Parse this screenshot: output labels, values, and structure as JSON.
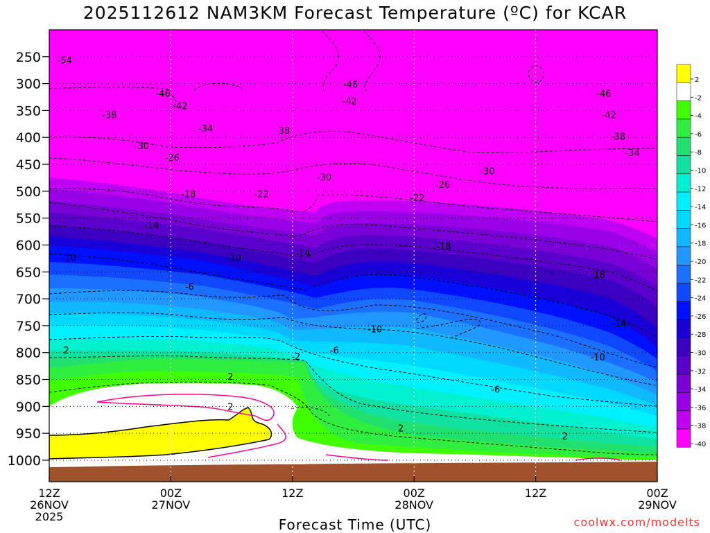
{
  "title": "2025112612 NAM3KM Forecast Temperature (ºC) for KCAR",
  "credit": "coolwx.com/modelts",
  "chart_data": {
    "type": "heatmap",
    "title": "2025112612 NAM3KM Forecast Temperature (ºC) for KCAR",
    "xlabel": "Forecast Time (UTC)",
    "ylabel": "",
    "x_ticks": [
      {
        "hour": 0,
        "lines": [
          "12Z",
          "26NOV",
          "2025"
        ]
      },
      {
        "hour": 12,
        "lines": [
          "00Z",
          "27NOV"
        ]
      },
      {
        "hour": 24,
        "lines": [
          "12Z"
        ]
      },
      {
        "hour": 36,
        "lines": [
          "00Z",
          "28NOV"
        ]
      },
      {
        "hour": 48,
        "lines": [
          "12Z"
        ]
      },
      {
        "hour": 60,
        "lines": [
          "00Z",
          "29NOV"
        ]
      }
    ],
    "xlim": [
      0,
      60
    ],
    "y_ticks": [
      250,
      300,
      350,
      400,
      450,
      500,
      550,
      600,
      650,
      700,
      750,
      800,
      850,
      900,
      950,
      1000
    ],
    "ylim": [
      1040,
      200
    ],
    "ygrid": "dotted",
    "colorbar_labels": [
      "2",
      "-2",
      "-4",
      "-6",
      "-8",
      "-10",
      "-12",
      "-14",
      "-16",
      "-18",
      "-20",
      "-22",
      "-24",
      "-26",
      "-28",
      "-30",
      "-32",
      "-34",
      "-36",
      "-38",
      "-40"
    ],
    "colorbar_colors": [
      "#ffff00",
      "#ffffff",
      "#40ff00",
      "#30ee40",
      "#20e070",
      "#10e0a0",
      "#00f0d0",
      "#00f0ff",
      "#00d8ff",
      "#10b8ff",
      "#2098ff",
      "#1c70ff",
      "#1048ff",
      "#0010ff",
      "#1a00d8",
      "#3c00c0",
      "#5a00cc",
      "#7a00d8",
      "#9a00e8",
      "#c000f4",
      "#ff00ff"
    ],
    "isotherm_labels": [
      {
        "text": "-54",
        "x": 0.8,
        "p": 256
      },
      {
        "text": "-46",
        "x": 10.5,
        "p": 318
      },
      {
        "text": "-46",
        "x": 29,
        "p": 301
      },
      {
        "text": "-46",
        "x": 54,
        "p": 318
      },
      {
        "text": "-42",
        "x": 12.2,
        "p": 341
      },
      {
        "text": "-42",
        "x": 28.9,
        "p": 332
      },
      {
        "text": "-42",
        "x": 54.5,
        "p": 358
      },
      {
        "text": "-38",
        "x": 5.2,
        "p": 358
      },
      {
        "text": "-38",
        "x": 22.3,
        "p": 387
      },
      {
        "text": "-38",
        "x": 55.4,
        "p": 398
      },
      {
        "text": "-34",
        "x": 14.7,
        "p": 383
      },
      {
        "text": "-34",
        "x": 56.8,
        "p": 428
      },
      {
        "text": "-30",
        "x": 8.4,
        "p": 415
      },
      {
        "text": "-30",
        "x": 26.4,
        "p": 474
      },
      {
        "text": "-30",
        "x": 42.5,
        "p": 462
      },
      {
        "text": "-26",
        "x": 11.4,
        "p": 437
      },
      {
        "text": "-26",
        "x": 38.1,
        "p": 487
      },
      {
        "text": "-22",
        "x": 20.2,
        "p": 505
      },
      {
        "text": "-22",
        "x": 35.6,
        "p": 512
      },
      {
        "text": "-18",
        "x": 13,
        "p": 505
      },
      {
        "text": "-18",
        "x": 38.2,
        "p": 602
      },
      {
        "text": "-18",
        "x": 53.4,
        "p": 655
      },
      {
        "text": "-14",
        "x": 9.4,
        "p": 563
      },
      {
        "text": "-14",
        "x": 24.3,
        "p": 615
      },
      {
        "text": "-14",
        "x": 55.5,
        "p": 745
      },
      {
        "text": "-10",
        "x": 1.2,
        "p": 623
      },
      {
        "text": "-10",
        "x": 17.5,
        "p": 623
      },
      {
        "text": "-10",
        "x": 31.4,
        "p": 756
      },
      {
        "text": "-10",
        "x": 53.4,
        "p": 808
      },
      {
        "text": "-6",
        "x": 13.4,
        "p": 677
      },
      {
        "text": "-6",
        "x": 27.7,
        "p": 795
      },
      {
        "text": "-6",
        "x": 43.6,
        "p": 868
      },
      {
        "text": "-2",
        "x": 23.9,
        "p": 807
      },
      {
        "text": "2",
        "x": 1.4,
        "p": 795
      },
      {
        "text": "2",
        "x": 17.6,
        "p": 844
      },
      {
        "text": "2",
        "x": 17.6,
        "p": 900
      },
      {
        "text": "2",
        "x": 34.4,
        "p": 940
      },
      {
        "text": "2",
        "x": 50.6,
        "p": 955
      }
    ]
  }
}
